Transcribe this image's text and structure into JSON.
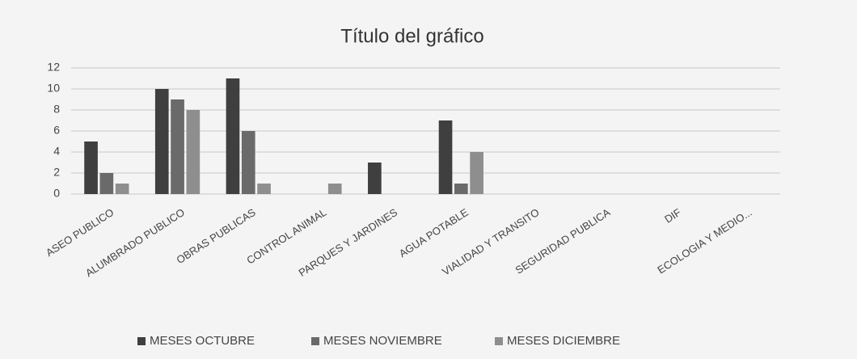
{
  "chart_data": {
    "type": "bar",
    "title": "Título del gráfico",
    "categories": [
      "ASEO PUBLICO",
      "ALUMBRADO PUBLICO",
      "OBRAS PUBLICAS",
      "CONTROL ANIMAL",
      "PARQUES Y JARDINES",
      "AGUA POTABLE",
      "VIALIDAD Y TRANSITO",
      "SEGURIDAD PUBLICA",
      "DIF",
      "ECOLOGIA Y MEDIO..."
    ],
    "series": [
      {
        "name": "MESES OCTUBRE",
        "color": "#3f3f3f",
        "values": [
          5,
          10,
          11,
          null,
          3,
          7,
          null,
          null,
          null,
          null
        ]
      },
      {
        "name": "MESES NOVIEMBRE",
        "color": "#6a6a6a",
        "values": [
          2,
          9,
          6,
          null,
          null,
          1,
          null,
          null,
          null,
          null
        ]
      },
      {
        "name": "MESES DICIEMBRE",
        "color": "#8e8e8e",
        "values": [
          1,
          8,
          1,
          1,
          null,
          4,
          null,
          null,
          null,
          null
        ]
      }
    ],
    "ylim": [
      0,
      12
    ],
    "yticks": [
      0,
      2,
      4,
      6,
      8,
      10,
      12
    ],
    "grid": true,
    "legend": "bottom"
  }
}
